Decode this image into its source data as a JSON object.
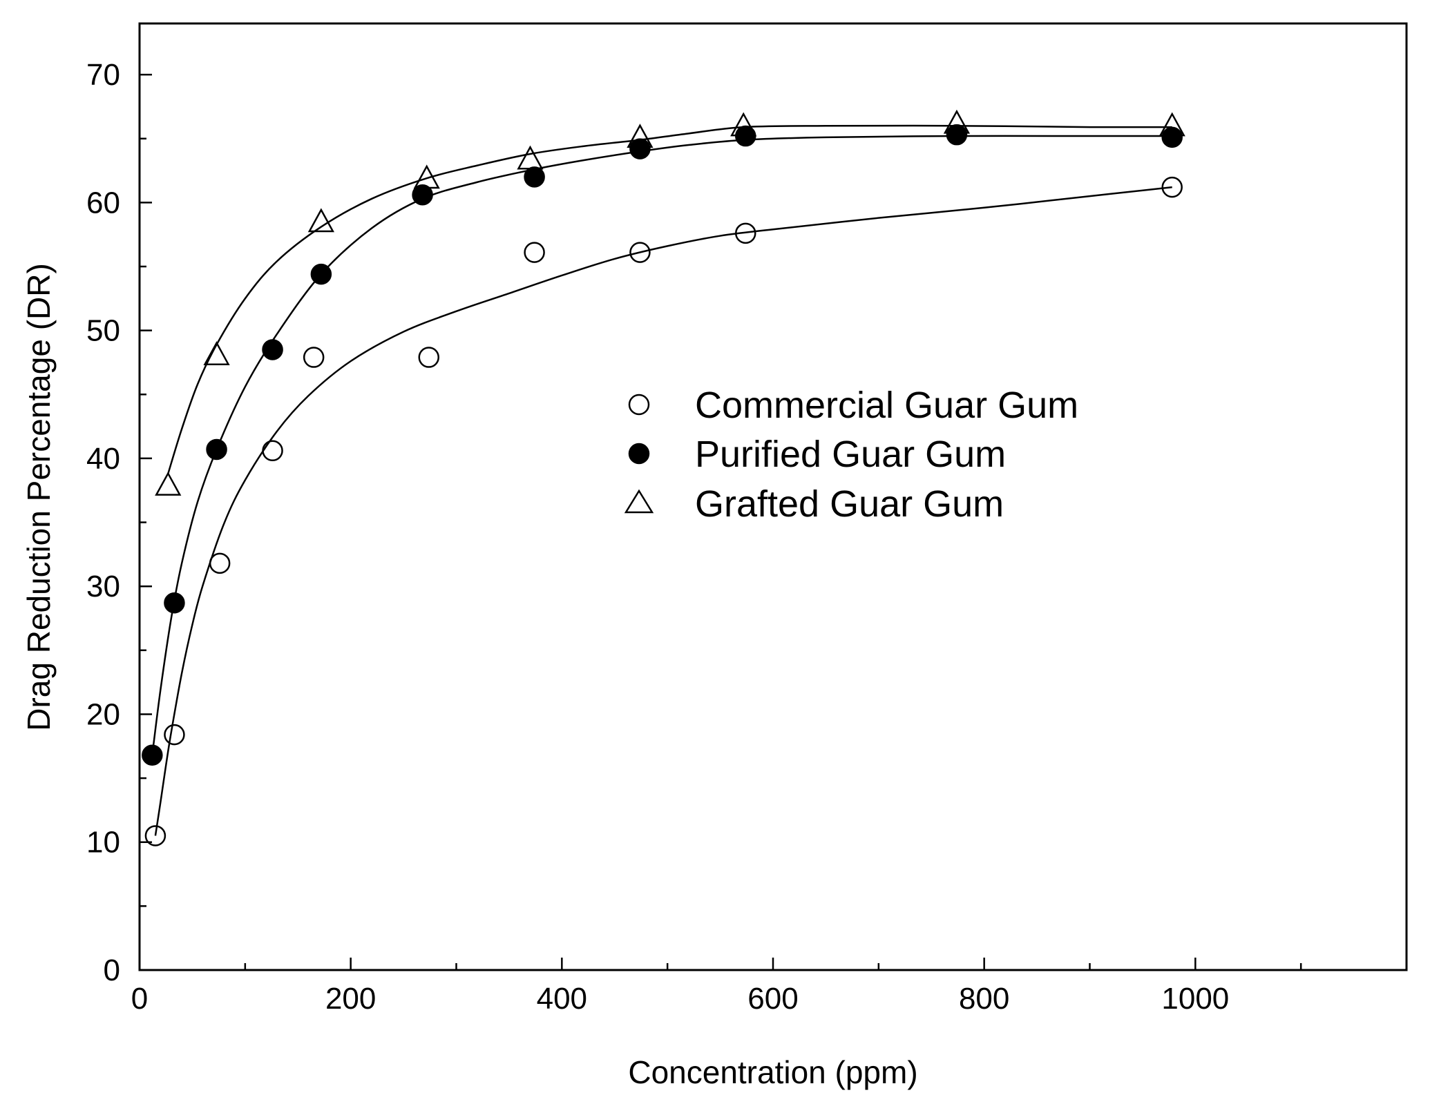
{
  "chart_data": {
    "type": "scatter",
    "title": "",
    "xlabel": "Concentration (ppm)",
    "ylabel": "Drag Reduction Percentage (DR)",
    "xlim": [
      0,
      1200
    ],
    "ylim": [
      0,
      74
    ],
    "x_ticks": [
      0,
      200,
      400,
      600,
      800,
      1000
    ],
    "x_tick_labels": [
      "0",
      "200",
      "400",
      "600",
      "800",
      "1000"
    ],
    "y_ticks": [
      0,
      10,
      20,
      30,
      40,
      50,
      60,
      70
    ],
    "y_tick_labels": [
      "0",
      "10",
      "20",
      "30",
      "40",
      "50",
      "60",
      "70"
    ],
    "grid": false,
    "legend_position": "center-right",
    "series": [
      {
        "name": "Commercial Guar Gum",
        "marker": "open-circle",
        "color": "#000000",
        "x": [
          15,
          33,
          76,
          126,
          165,
          274,
          374,
          474,
          574,
          978
        ],
        "y": [
          10.5,
          18.4,
          31.8,
          40.6,
          47.9,
          47.9,
          56.1,
          56.1,
          57.6,
          61.2
        ],
        "fit_curve": {
          "x": [
            15,
            20,
            25,
            30,
            40,
            50,
            60,
            80,
            100,
            130,
            160,
            200,
            250,
            300,
            350,
            400,
            450,
            500,
            550,
            600,
            700,
            800,
            900,
            978
          ],
          "y": [
            10.5,
            13.2,
            16.0,
            18.6,
            23.2,
            27.0,
            30.1,
            34.9,
            38.3,
            42.1,
            44.9,
            47.6,
            49.9,
            51.5,
            52.9,
            54.3,
            55.6,
            56.6,
            57.4,
            57.9,
            58.8,
            59.6,
            60.5,
            61.2
          ]
        }
      },
      {
        "name": "Purified Guar Gum",
        "marker": "filled-circle",
        "color": "#000000",
        "x": [
          12,
          33,
          73,
          126,
          172,
          268,
          374,
          474,
          574,
          774,
          978
        ],
        "y": [
          16.8,
          28.7,
          40.7,
          48.5,
          54.4,
          60.6,
          62.0,
          64.2,
          65.2,
          65.3,
          65.1
        ],
        "fit_curve": {
          "x": [
            12,
            20,
            30,
            40,
            55,
            73,
            100,
            130,
            172,
            220,
            268,
            320,
            374,
            420,
            474,
            520,
            574,
            650,
            774,
            900,
            978
          ],
          "y": [
            16.8,
            22.0,
            27.5,
            31.8,
            36.6,
            40.7,
            45.6,
            49.7,
            54.4,
            58.0,
            60.3,
            61.6,
            62.6,
            63.3,
            64.0,
            64.5,
            64.9,
            65.1,
            65.2,
            65.2,
            65.2
          ]
        }
      },
      {
        "name": "Grafted Guar Gum",
        "marker": "open-triangle",
        "color": "#000000",
        "x": [
          27,
          73,
          172,
          272,
          370,
          474,
          572,
          774,
          978
        ],
        "y": [
          37.8,
          48.0,
          58.4,
          61.8,
          63.3,
          65.0,
          65.9,
          66.1,
          65.9
        ],
        "fit_curve": {
          "x": [
            27,
            40,
            55,
            73,
            100,
            130,
            172,
            220,
            272,
            320,
            370,
            420,
            474,
            520,
            572,
            650,
            774,
            900,
            978
          ],
          "y": [
            38.8,
            42.3,
            45.8,
            48.9,
            52.5,
            55.4,
            58.1,
            60.3,
            61.9,
            62.9,
            63.8,
            64.4,
            64.9,
            65.4,
            65.9,
            66.0,
            66.0,
            65.9,
            65.9
          ]
        }
      }
    ]
  }
}
